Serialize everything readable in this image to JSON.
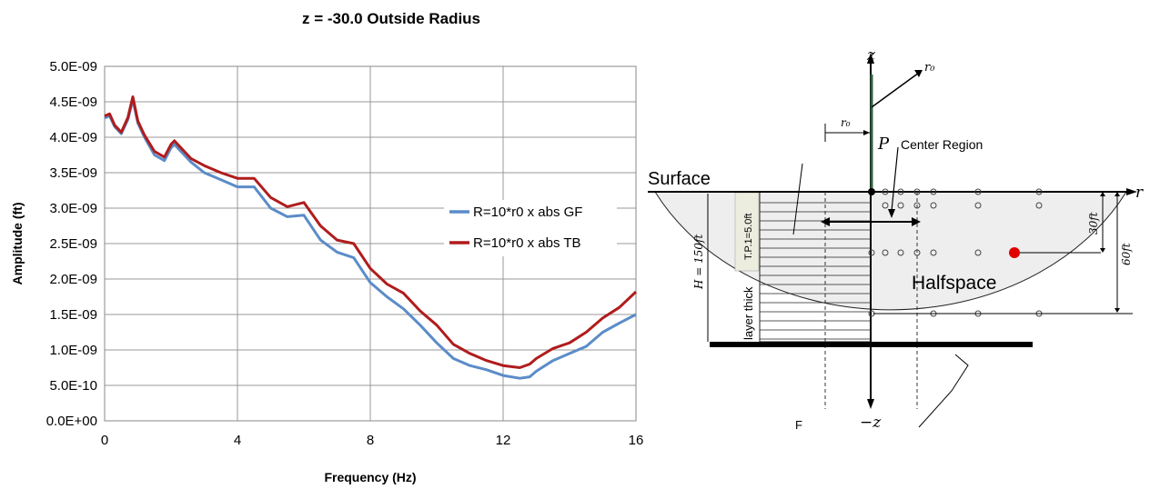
{
  "chart_data": {
    "type": "line",
    "title": "z = -30.0 Outside Radius",
    "xlabel": "Frequency (Hz)",
    "ylabel": "Amplitude (ft)",
    "xlim": [
      0,
      16
    ],
    "ylim": [
      0,
      5e-09
    ],
    "x_ticks": [
      "0",
      "4",
      "8",
      "12",
      "16"
    ],
    "x_tick_values": [
      0,
      4,
      8,
      12,
      16
    ],
    "y_ticks": [
      "0.0E+00",
      "5.0E-10",
      "1.0E-09",
      "1.5E-09",
      "2.0E-09",
      "2.5E-09",
      "3.0E-09",
      "3.5E-09",
      "4.0E-09",
      "4.5E-09",
      "5.0E-09"
    ],
    "y_tick_values": [
      0,
      5e-10,
      1e-09,
      1.5e-09,
      2e-09,
      2.5e-09,
      3e-09,
      3.5e-09,
      4e-09,
      4.5e-09,
      5e-09
    ],
    "grid": true,
    "legend_position": "right",
    "series": [
      {
        "name": "R=10*r0 x abs GF",
        "color": "#5b8cc8",
        "x": [
          0,
          0.15,
          0.3,
          0.5,
          0.7,
          0.85,
          1.0,
          1.2,
          1.5,
          1.8,
          2.0,
          2.1,
          2.3,
          2.6,
          3.0,
          3.5,
          4.0,
          4.5,
          5.0,
          5.5,
          6.0,
          6.5,
          7.0,
          7.5,
          8.0,
          8.5,
          9.0,
          9.5,
          10.0,
          10.5,
          11.0,
          11.5,
          12.0,
          12.5,
          12.8,
          13.0,
          13.5,
          14.0,
          14.5,
          15.0,
          15.5,
          16.0
        ],
        "y": [
          4.27e-09,
          4.3e-09,
          4.15e-09,
          4.05e-09,
          4.25e-09,
          4.53e-09,
          4.2e-09,
          4e-09,
          3.75e-09,
          3.67e-09,
          3.85e-09,
          3.9e-09,
          3.8e-09,
          3.65e-09,
          3.5e-09,
          3.4e-09,
          3.3e-09,
          3.3e-09,
          3e-09,
          2.88e-09,
          2.9e-09,
          2.55e-09,
          2.38e-09,
          2.3e-09,
          1.95e-09,
          1.75e-09,
          1.58e-09,
          1.35e-09,
          1.1e-09,
          8.8e-10,
          7.8e-10,
          7.2e-10,
          6.4e-10,
          6e-10,
          6.2e-10,
          7e-10,
          8.5e-10,
          9.5e-10,
          1.05e-09,
          1.25e-09,
          1.38e-09,
          1.5e-09
        ]
      },
      {
        "name": "R=10*r0 x abs TB",
        "color": "#b01c1c",
        "x": [
          0,
          0.15,
          0.3,
          0.5,
          0.7,
          0.85,
          1.0,
          1.2,
          1.5,
          1.8,
          2.0,
          2.1,
          2.3,
          2.6,
          3.0,
          3.5,
          4.0,
          4.5,
          5.0,
          5.5,
          6.0,
          6.5,
          7.0,
          7.5,
          8.0,
          8.5,
          9.0,
          9.5,
          10.0,
          10.5,
          11.0,
          11.5,
          12.0,
          12.5,
          12.8,
          13.0,
          13.5,
          14.0,
          14.5,
          15.0,
          15.5,
          16.0
        ],
        "y": [
          4.3e-09,
          4.33e-09,
          4.17e-09,
          4.07e-09,
          4.28e-09,
          4.57e-09,
          4.23e-09,
          4.03e-09,
          3.8e-09,
          3.72e-09,
          3.9e-09,
          3.95e-09,
          3.85e-09,
          3.7e-09,
          3.6e-09,
          3.5e-09,
          3.42e-09,
          3.42e-09,
          3.15e-09,
          3.02e-09,
          3.08e-09,
          2.75e-09,
          2.55e-09,
          2.5e-09,
          2.15e-09,
          1.93e-09,
          1.8e-09,
          1.55e-09,
          1.35e-09,
          1.08e-09,
          9.5e-10,
          8.5e-10,
          7.8e-10,
          7.5e-10,
          8e-10,
          8.8e-10,
          1.02e-09,
          1.1e-09,
          1.25e-09,
          1.45e-09,
          1.6e-09,
          1.82e-09
        ]
      }
    ]
  },
  "diagram": {
    "labels": {
      "z_axis": "z",
      "neg_z": "−z",
      "r_axis": "r",
      "r0_top": "r₀",
      "r0_left": "r₀",
      "p_load": "P",
      "center_region": "Center Region",
      "surface": "Surface",
      "halfspace": "Halfspace",
      "h_depth": "H = 150ft",
      "tp": "T.P.1=5.0ft",
      "layer_thick": "layer thick",
      "d30": "30ft",
      "d60": "60ft",
      "f_label": "F"
    },
    "colors": {
      "halfspace_fill": "#eeeeee",
      "load_stem": "#2f5f3f",
      "red_point": "#e00000"
    }
  }
}
